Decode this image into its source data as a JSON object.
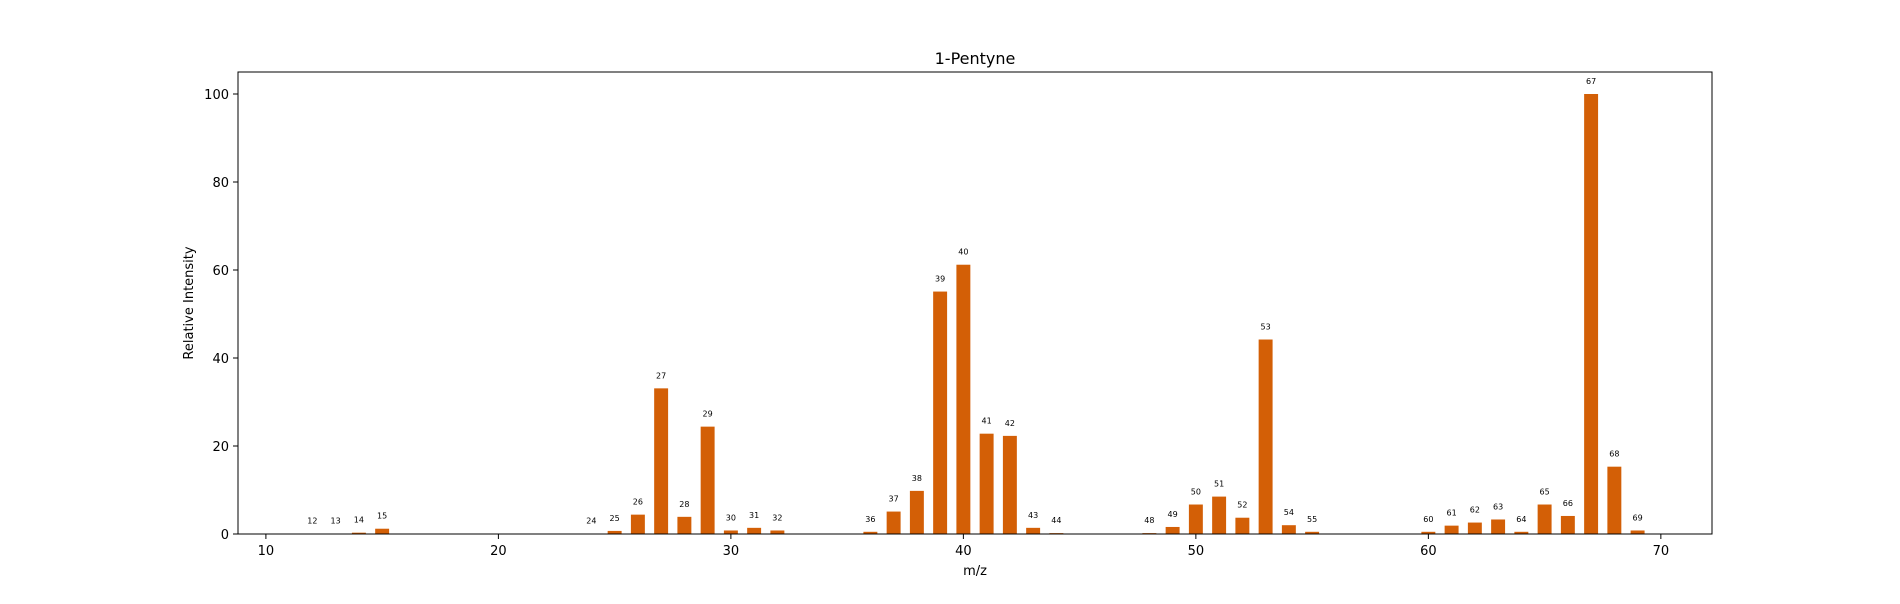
{
  "chart_data": {
    "type": "bar",
    "title": "1-Pentyne",
    "xlabel": "m/z",
    "ylabel": "Relative Intensity",
    "xlim": [
      8.8,
      72.2
    ],
    "ylim": [
      0,
      105
    ],
    "xticks": [
      10,
      20,
      30,
      40,
      50,
      60,
      70
    ],
    "yticks": [
      0,
      20,
      40,
      60,
      80,
      100
    ],
    "grid": false,
    "bar_color": "#d35f06",
    "x": [
      12,
      13,
      14,
      15,
      24,
      25,
      26,
      27,
      28,
      29,
      30,
      31,
      32,
      36,
      37,
      38,
      39,
      40,
      41,
      42,
      43,
      44,
      48,
      49,
      50,
      51,
      52,
      53,
      54,
      55,
      60,
      61,
      62,
      63,
      64,
      65,
      66,
      67,
      68,
      69
    ],
    "values": [
      0.1,
      0.1,
      0.3,
      1.2,
      0.1,
      0.7,
      4.4,
      33.1,
      3.9,
      24.4,
      0.8,
      1.4,
      0.8,
      0.5,
      5.1,
      9.8,
      55.1,
      61.2,
      22.8,
      22.3,
      1.4,
      0.2,
      0.2,
      1.6,
      6.7,
      8.5,
      3.7,
      44.2,
      2.0,
      0.5,
      0.5,
      1.9,
      2.6,
      3.3,
      0.5,
      6.7,
      4.1,
      100.0,
      15.3,
      0.8
    ],
    "labels": [
      "12",
      "13",
      "14",
      "15",
      "24",
      "25",
      "26",
      "27",
      "28",
      "29",
      "30",
      "31",
      "32",
      "36",
      "37",
      "38",
      "39",
      "40",
      "41",
      "42",
      "43",
      "44",
      "48",
      "49",
      "50",
      "51",
      "52",
      "53",
      "54",
      "55",
      "60",
      "61",
      "62",
      "63",
      "64",
      "65",
      "66",
      "67",
      "68",
      "69"
    ]
  }
}
